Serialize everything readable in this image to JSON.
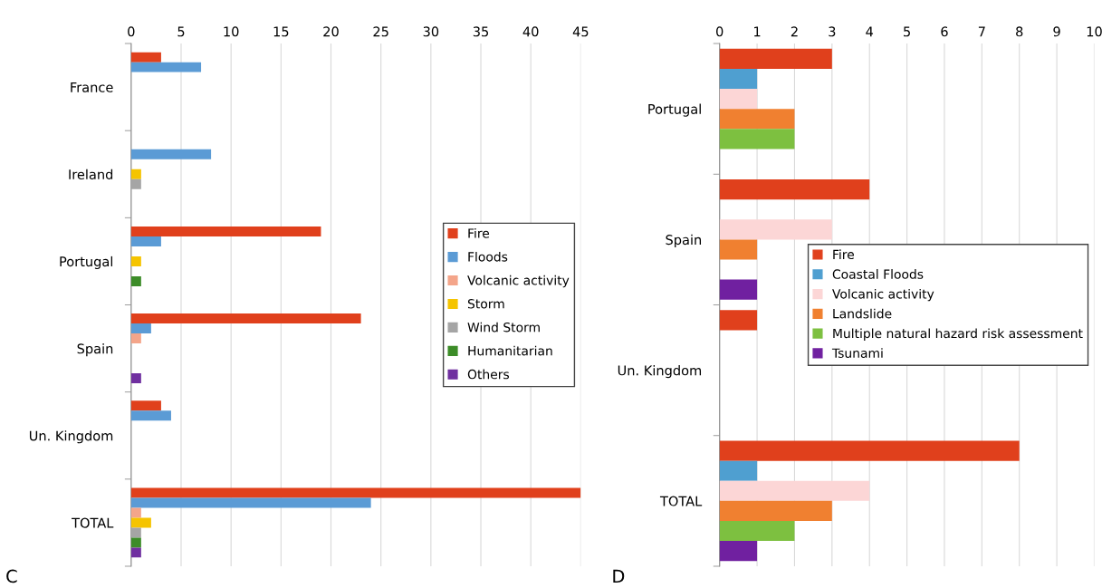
{
  "chart_data": [
    {
      "type": "bar",
      "orientation": "horizontal",
      "categories": [
        "France",
        "Ireland",
        "Portugal",
        "Spain",
        "Un. Kingdom",
        "TOTAL"
      ],
      "xlim": [
        0,
        45
      ],
      "xticks": [
        0,
        5,
        10,
        15,
        20,
        25,
        30,
        35,
        40,
        45
      ],
      "grid": "x",
      "legend": "right",
      "annotations": [
        "C"
      ],
      "series": [
        {
          "name": "Fire",
          "color": "#e0401c",
          "values": [
            3,
            0,
            19,
            23,
            3,
            45
          ]
        },
        {
          "name": "Floods",
          "color": "#5b9bd5",
          "values": [
            7,
            8,
            3,
            2,
            4,
            24
          ]
        },
        {
          "name": "Volcanic activity",
          "color": "#f4a58a",
          "values": [
            0,
            0,
            0,
            1,
            0,
            1
          ]
        },
        {
          "name": "Storm",
          "color": "#f5c400",
          "values": [
            0,
            1,
            1,
            0,
            0,
            2
          ]
        },
        {
          "name": "Wind Storm",
          "color": "#a5a5a5",
          "values": [
            0,
            1,
            0,
            0,
            0,
            1
          ]
        },
        {
          "name": "Humanitarian",
          "color": "#3c8c28",
          "values": [
            0,
            0,
            1,
            0,
            0,
            1
          ]
        },
        {
          "name": "Others",
          "color": "#7030a0",
          "values": [
            0,
            0,
            0,
            1,
            0,
            1
          ]
        }
      ]
    },
    {
      "type": "bar",
      "orientation": "horizontal",
      "categories": [
        "Portugal",
        "Spain",
        "Un. Kingdom",
        "TOTAL"
      ],
      "xlim": [
        0,
        10
      ],
      "xticks": [
        0,
        1,
        2,
        3,
        4,
        5,
        6,
        7,
        8,
        9,
        10
      ],
      "grid": "x",
      "legend": "center right",
      "annotations": [
        "D"
      ],
      "series": [
        {
          "name": "Fire",
          "color": "#e0401c",
          "values": [
            3,
            4,
            1,
            8
          ]
        },
        {
          "name": "Coastal Floods",
          "color": "#4f9fd0",
          "values": [
            1,
            0,
            0,
            1
          ]
        },
        {
          "name": "Volcanic activity",
          "color": "#fcd6d6",
          "values": [
            1,
            3,
            0,
            4
          ]
        },
        {
          "name": "Landslide",
          "color": "#f08030",
          "values": [
            2,
            1,
            0,
            3
          ]
        },
        {
          "name": "Multiple natural hazard risk assessment",
          "color": "#7dc040",
          "values": [
            2,
            0,
            0,
            2
          ]
        },
        {
          "name": "Tsunami",
          "color": "#7020a0",
          "values": [
            0,
            1,
            0,
            1
          ]
        }
      ]
    }
  ]
}
